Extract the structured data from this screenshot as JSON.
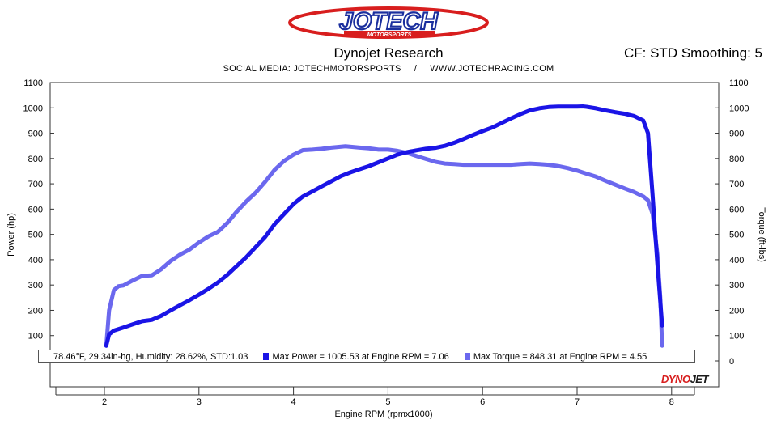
{
  "header": {
    "logo_text": "JOTECH",
    "logo_subtext": "MOTORSPORTS",
    "title": "Dynojet Research",
    "subtitle": "SOCIAL MEDIA: JOTECHMOTORSPORTS     /     WWW.JOTECHRACING.COM",
    "cf_label": "CF: STD Smoothing: 5"
  },
  "info": {
    "conditions": "78.46°F, 29.34in-hg, Humidity: 28.62%, STD:1.03",
    "max_power": "Max Power = 1005.53 at Engine RPM = 7.06",
    "max_torque": "Max Torque = 848.31 at Engine RPM = 4.55"
  },
  "watermark": {
    "part1": "DYNO",
    "part2": "JET"
  },
  "colors": {
    "power": "#1a14e6",
    "torque": "#6b68ee",
    "grid": "#bfbfbf",
    "frame": "#333333"
  },
  "chart_data": {
    "type": "line",
    "xlabel": "Engine RPM (rpmx1000)",
    "ylabel": "Power (hp)",
    "y2label": "Torque (ft-lbs)",
    "xlim": [
      1.5,
      8.3
    ],
    "ylim": [
      50,
      1100
    ],
    "y2lim": [
      50,
      1100
    ],
    "x_ticks": [
      2,
      3,
      4,
      5,
      6,
      7,
      8
    ],
    "y_ticks": [
      100,
      200,
      300,
      400,
      500,
      600,
      700,
      800,
      900,
      1000,
      1100
    ],
    "y2_ticks": [
      0,
      100,
      200,
      300,
      400,
      500,
      600,
      700,
      800,
      900,
      1000,
      1100
    ],
    "grid": false,
    "series": [
      {
        "name": "Power",
        "axis": "left",
        "x": [
          2.02,
          2.05,
          2.1,
          2.2,
          2.3,
          2.4,
          2.5,
          2.6,
          2.7,
          2.8,
          2.9,
          3.0,
          3.1,
          3.2,
          3.3,
          3.4,
          3.5,
          3.6,
          3.7,
          3.8,
          3.9,
          4.0,
          4.1,
          4.2,
          4.3,
          4.4,
          4.5,
          4.6,
          4.7,
          4.8,
          4.9,
          5.0,
          5.1,
          5.2,
          5.3,
          5.4,
          5.5,
          5.6,
          5.7,
          5.8,
          5.9,
          6.0,
          6.1,
          6.2,
          6.3,
          6.4,
          6.5,
          6.6,
          6.7,
          6.8,
          6.9,
          7.0,
          7.06,
          7.1,
          7.2,
          7.3,
          7.4,
          7.5,
          7.6,
          7.7,
          7.75,
          7.8,
          7.85,
          7.9
        ],
        "values": [
          60,
          105,
          120,
          132,
          145,
          157,
          162,
          178,
          200,
          220,
          240,
          262,
          285,
          310,
          340,
          375,
          410,
          450,
          490,
          540,
          580,
          620,
          650,
          670,
          690,
          710,
          730,
          745,
          758,
          770,
          785,
          800,
          815,
          825,
          832,
          838,
          842,
          850,
          862,
          877,
          893,
          908,
          922,
          940,
          958,
          975,
          990,
          998,
          1003,
          1005,
          1005,
          1005,
          1005.53,
          1004,
          998,
          990,
          983,
          977,
          968,
          950,
          900,
          650,
          380,
          140
        ]
      },
      {
        "name": "Torque",
        "axis": "right",
        "x": [
          2.02,
          2.05,
          2.1,
          2.15,
          2.2,
          2.3,
          2.4,
          2.5,
          2.6,
          2.7,
          2.8,
          2.9,
          3.0,
          3.1,
          3.2,
          3.3,
          3.4,
          3.5,
          3.6,
          3.7,
          3.8,
          3.9,
          4.0,
          4.1,
          4.2,
          4.3,
          4.4,
          4.55,
          4.7,
          4.8,
          4.9,
          5.0,
          5.1,
          5.2,
          5.3,
          5.4,
          5.5,
          5.6,
          5.7,
          5.8,
          5.9,
          6.0,
          6.1,
          6.2,
          6.3,
          6.4,
          6.5,
          6.6,
          6.7,
          6.8,
          6.9,
          7.0,
          7.1,
          7.2,
          7.3,
          7.4,
          7.5,
          7.6,
          7.7,
          7.75,
          7.8,
          7.85,
          7.88,
          7.9
        ],
        "values": [
          60,
          200,
          280,
          295,
          298,
          318,
          336,
          338,
          362,
          395,
          420,
          440,
          468,
          492,
          510,
          545,
          590,
          630,
          665,
          708,
          755,
          790,
          815,
          833,
          835,
          838,
          843,
          848.31,
          843,
          840,
          835,
          835,
          830,
          822,
          810,
          798,
          787,
          780,
          778,
          775,
          775,
          775,
          775,
          775,
          775,
          778,
          780,
          778,
          775,
          770,
          762,
          752,
          740,
          728,
          712,
          697,
          682,
          668,
          650,
          635,
          580,
          420,
          250,
          60
        ]
      }
    ]
  }
}
